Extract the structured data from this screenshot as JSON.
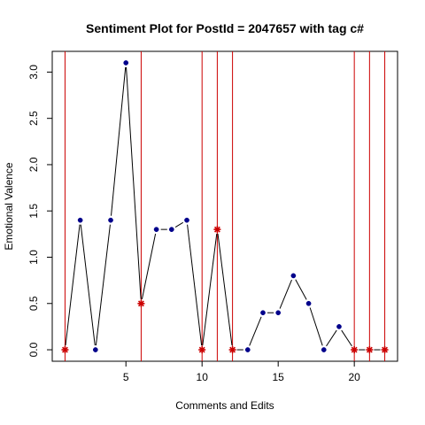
{
  "chart_data": {
    "type": "line",
    "title": "Sentiment Plot for PostId =  2047657  with tag  c#",
    "xlabel": "Comments and Edits",
    "ylabel": "Emotional Valence",
    "xlim": [
      0.16,
      22.84
    ],
    "ylim": [
      -0.124,
      3.224
    ],
    "x_ticks": [
      5,
      10,
      15,
      20
    ],
    "y_ticks": [
      0.0,
      0.5,
      1.0,
      1.5,
      2.0,
      2.5,
      3.0
    ],
    "x_tick_labels": [
      "5",
      "10",
      "15",
      "20"
    ],
    "y_tick_labels": [
      "0.0",
      "0.5",
      "1.0",
      "1.5",
      "2.0",
      "2.5",
      "3.0"
    ],
    "x": [
      1,
      2,
      3,
      4,
      5,
      6,
      7,
      8,
      9,
      10,
      11,
      12,
      13,
      14,
      15,
      16,
      17,
      18,
      19,
      20,
      21,
      22
    ],
    "y": [
      0.0,
      1.4,
      0.0,
      1.4,
      3.1,
      0.5,
      1.3,
      1.3,
      1.4,
      0.0,
      1.3,
      0.0,
      0.0,
      0.4,
      0.4,
      0.8,
      0.5,
      0.0,
      0.25,
      0.0,
      0.0,
      0.0
    ],
    "edit_points": [
      1,
      6,
      10,
      11,
      12,
      20,
      21,
      22
    ],
    "vertical_lines": [
      1,
      6,
      10,
      11,
      12,
      20,
      21,
      22
    ],
    "grid": false,
    "colors": {
      "line": "#000000",
      "comment_point": "#00008b",
      "edit_point": "#cc0000",
      "vertical_line": "#cc0000",
      "axis": "#000000"
    }
  }
}
